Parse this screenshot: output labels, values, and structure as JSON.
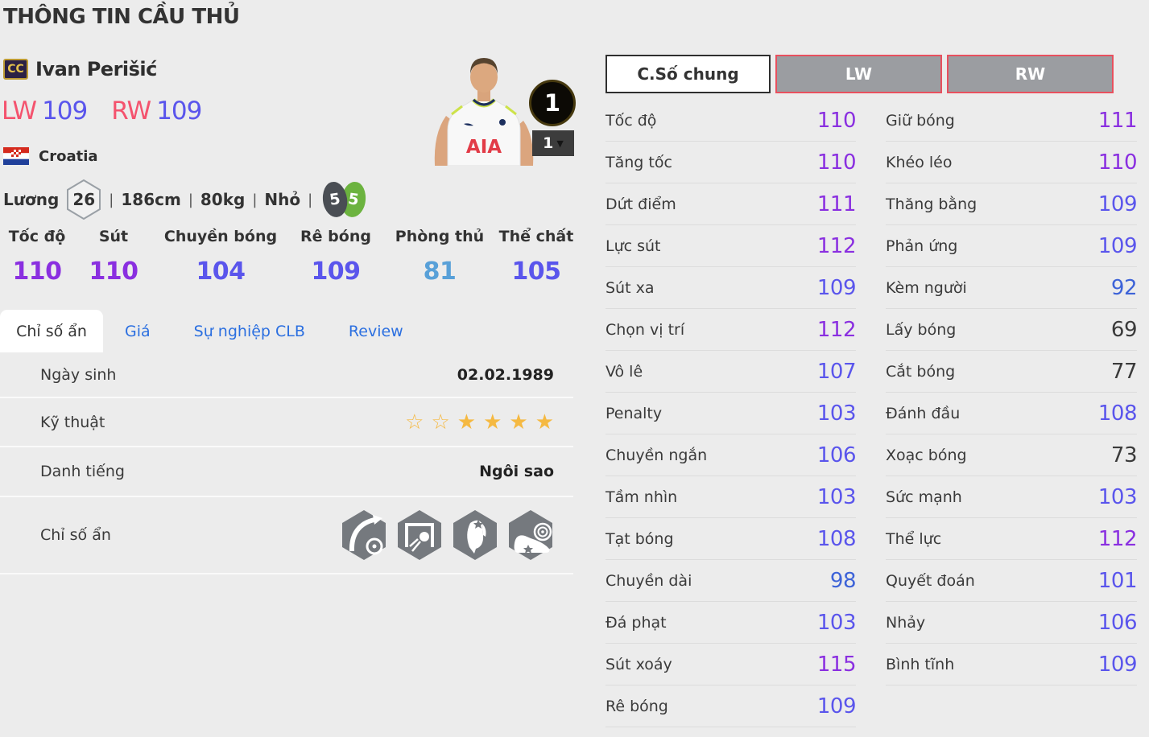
{
  "page": {
    "title": "THÔNG TIN CẦU THỦ"
  },
  "player": {
    "grade_badge": "CC",
    "name": "Ivan Perišić",
    "positions": [
      {
        "label": "LW",
        "rating": "109"
      },
      {
        "label": "RW",
        "rating": "109"
      }
    ],
    "nation": "Croatia",
    "salary_label": "Lương",
    "salary": "26",
    "height": "186cm",
    "weight": "80kg",
    "body_type": "Nhỏ",
    "meta_separator": "|",
    "weak_foot_rating": "5",
    "strong_foot_rating": "5",
    "level_badge": "1",
    "level_select": "1"
  },
  "summary_stats": [
    {
      "label": "Tốc độ",
      "value": "110"
    },
    {
      "label": "Sút",
      "value": "110"
    },
    {
      "label": "Chuyền bóng",
      "value": "104"
    },
    {
      "label": "Rê bóng",
      "value": "109"
    },
    {
      "label": "Phòng thủ",
      "value": "81"
    },
    {
      "label": "Thể chất",
      "value": "105"
    }
  ],
  "tabs": [
    {
      "id": "chi-so-an",
      "label": "Chỉ số ẩn",
      "active": true
    },
    {
      "id": "gia",
      "label": "Giá",
      "active": false
    },
    {
      "id": "su-nghiep-clb",
      "label": "Sự nghiệp CLB",
      "active": false
    },
    {
      "id": "review",
      "label": "Review",
      "active": false
    }
  ],
  "info_table": {
    "birth": {
      "label": "Ngày sinh",
      "value": "02.02.1989"
    },
    "skill": {
      "label": "Kỹ thuật",
      "stars": [
        "empty",
        "empty",
        "filled",
        "filled",
        "filled",
        "filled"
      ]
    },
    "fame": {
      "label": "Danh tiếng",
      "value": "Ngôi sao"
    },
    "hidden": {
      "label": "Chỉ số ẩn",
      "icons": [
        "trajectory-pass-icon",
        "goal-shot-icon",
        "flair-head-icon",
        "power-boot-icon"
      ]
    }
  },
  "detail": {
    "buttons": [
      {
        "id": "general",
        "label": "C.Số chung",
        "active": true
      },
      {
        "id": "lw",
        "label": "LW",
        "active": false
      },
      {
        "id": "rw",
        "label": "RW",
        "active": false
      }
    ],
    "left_column": [
      {
        "label": "Tốc độ",
        "value": "110"
      },
      {
        "label": "Tăng tốc",
        "value": "110"
      },
      {
        "label": "Dứt điểm",
        "value": "111"
      },
      {
        "label": "Lực sút",
        "value": "112"
      },
      {
        "label": "Sút xa",
        "value": "109"
      },
      {
        "label": "Chọn vị trí",
        "value": "112"
      },
      {
        "label": "Vô lê",
        "value": "107"
      },
      {
        "label": "Penalty",
        "value": "103"
      },
      {
        "label": "Chuyền ngắn",
        "value": "106"
      },
      {
        "label": "Tầm nhìn",
        "value": "103"
      },
      {
        "label": "Tạt bóng",
        "value": "108"
      },
      {
        "label": "Chuyền dài",
        "value": "98"
      },
      {
        "label": "Đá phạt",
        "value": "103"
      },
      {
        "label": "Sút xoáy",
        "value": "115"
      },
      {
        "label": "Rê bóng",
        "value": "109"
      }
    ],
    "right_column": [
      {
        "label": "Giữ bóng",
        "value": "111"
      },
      {
        "label": "Khéo léo",
        "value": "110"
      },
      {
        "label": "Thăng bằng",
        "value": "109"
      },
      {
        "label": "Phản ứng",
        "value": "109"
      },
      {
        "label": "Kèm người",
        "value": "92"
      },
      {
        "label": "Lấy bóng",
        "value": "69"
      },
      {
        "label": "Cắt bóng",
        "value": "77"
      },
      {
        "label": "Đánh đầu",
        "value": "108"
      },
      {
        "label": "Xoạc bóng",
        "value": "73"
      },
      {
        "label": "Sức mạnh",
        "value": "103"
      },
      {
        "label": "Thể lực",
        "value": "112"
      },
      {
        "label": "Quyết đoán",
        "value": "101"
      },
      {
        "label": "Nhảy",
        "value": "106"
      },
      {
        "label": "Bình tĩnh",
        "value": "109"
      }
    ]
  },
  "icons": {
    "caret_down": "▼",
    "star_filled": "★",
    "star_empty": "☆"
  },
  "colors": {
    "tier_110": "#8a2fe0",
    "tier_100": "#5a55ec",
    "tier_90": "#3d63d8",
    "tier_80": "#58a0d8",
    "tier_low": "#3a3a3a",
    "accent_red": "#f4536e",
    "tab_blue": "#2b6fe0",
    "star_gold": "#f5b942",
    "button_border_red": "#e8505e"
  }
}
